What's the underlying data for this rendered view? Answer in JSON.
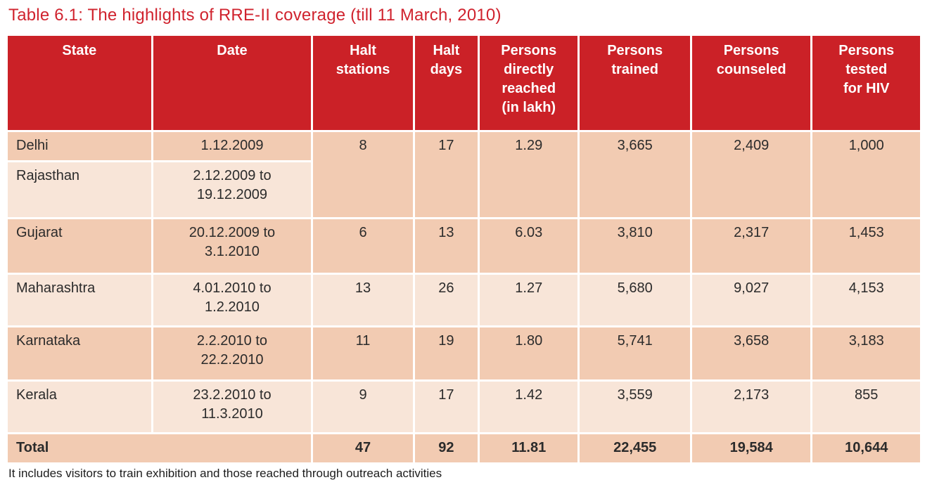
{
  "title": "Table 6.1: The highlights of RRE-II coverage (till 11 March, 2010)",
  "footnote": "It includes visitors to train exhibition and those reached through outreach activities",
  "colors": {
    "header_background": "#cb2127",
    "title_red": "#d0232e",
    "row_dark": "#f2cbb2",
    "row_light": "#f8e5d8",
    "header_text": "#ffffff",
    "body_text": "#2b2b2b"
  },
  "table": {
    "columns": [
      {
        "key": "state",
        "label": "State"
      },
      {
        "key": "date",
        "label": "Date"
      },
      {
        "key": "halt_stations",
        "label": "Halt\nstations"
      },
      {
        "key": "halt_days",
        "label": "Halt\ndays"
      },
      {
        "key": "persons_directly_reached",
        "label": "Persons\ndirectly\nreached\n(in lakh)"
      },
      {
        "key": "persons_trained",
        "label": "Persons\ntrained"
      },
      {
        "key": "persons_counseled",
        "label": "Persons\ncounseled"
      },
      {
        "key": "persons_tested_hiv",
        "label": "Persons\ntested\nfor HIV"
      }
    ],
    "rows": [
      {
        "state": "Delhi",
        "date": "1.12.2009",
        "shade": "dark",
        "span_cells": {
          "rowspan": 2,
          "shade": "dark",
          "values": [
            "8",
            "17",
            "1.29",
            "3,665",
            "2,409",
            "1,000"
          ]
        }
      },
      {
        "state": "Rajasthan",
        "date": "2.12.2009 to\n19.12.2009",
        "shade": "light"
      },
      {
        "state": "Gujarat",
        "date": "20.12.2009 to\n3.1.2010",
        "shade": "dark",
        "values": [
          "6",
          "13",
          "6.03",
          "3,810",
          "2,317",
          "1,453"
        ]
      },
      {
        "state": "Maharashtra",
        "date": "4.01.2010 to\n1.2.2010",
        "shade": "light",
        "values": [
          "13",
          "26",
          "1.27",
          "5,680",
          "9,027",
          "4,153"
        ]
      },
      {
        "state": "Karnataka",
        "date": "2.2.2010 to\n22.2.2010",
        "shade": "dark",
        "values": [
          "11",
          "19",
          "1.80",
          "5,741",
          "3,658",
          "3,183"
        ]
      },
      {
        "state": "Kerala",
        "date": "23.2.2010 to\n11.3.2010",
        "shade": "light",
        "values": [
          "9",
          "17",
          "1.42",
          "3,559",
          "2,173",
          "855"
        ]
      }
    ],
    "total_row": {
      "label": "Total",
      "shade": "dark",
      "values": [
        "47",
        "92",
        "11.81",
        "22,455",
        "19,584",
        "10,644"
      ]
    }
  }
}
